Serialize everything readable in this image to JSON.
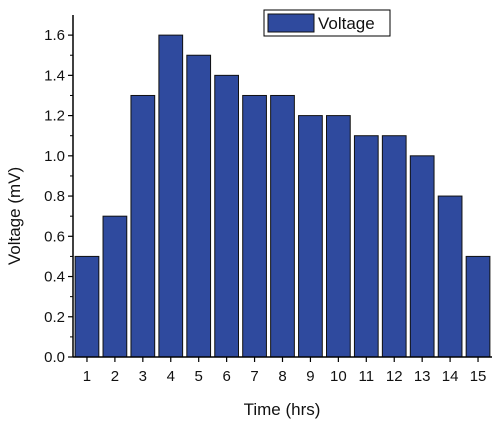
{
  "chart_data": {
    "type": "bar",
    "categories": [
      "1",
      "2",
      "3",
      "4",
      "5",
      "6",
      "7",
      "8",
      "9",
      "10",
      "11",
      "12",
      "13",
      "14",
      "15"
    ],
    "series": [
      {
        "name": "Voltage",
        "values": [
          0.5,
          0.7,
          1.3,
          1.6,
          1.5,
          1.4,
          1.3,
          1.3,
          1.2,
          1.2,
          1.1,
          1.1,
          1.0,
          0.8,
          0.5
        ]
      }
    ],
    "xlabel": "Time (hrs)",
    "ylabel": "Voltage (mV)",
    "ylim": [
      0,
      1.7
    ],
    "yticks": [
      "0.0",
      "0.2",
      "0.4",
      "0.6",
      "0.8",
      "1.0",
      "1.2",
      "1.4",
      "1.6"
    ],
    "ytick_values": [
      0,
      0.2,
      0.4,
      0.6,
      0.8,
      1.0,
      1.2,
      1.4,
      1.6
    ],
    "grid": false,
    "legend_position": "top-right",
    "colors": {
      "bar": "#2f4a9e",
      "bar_edge": "#111111",
      "axis": "#000000"
    }
  }
}
